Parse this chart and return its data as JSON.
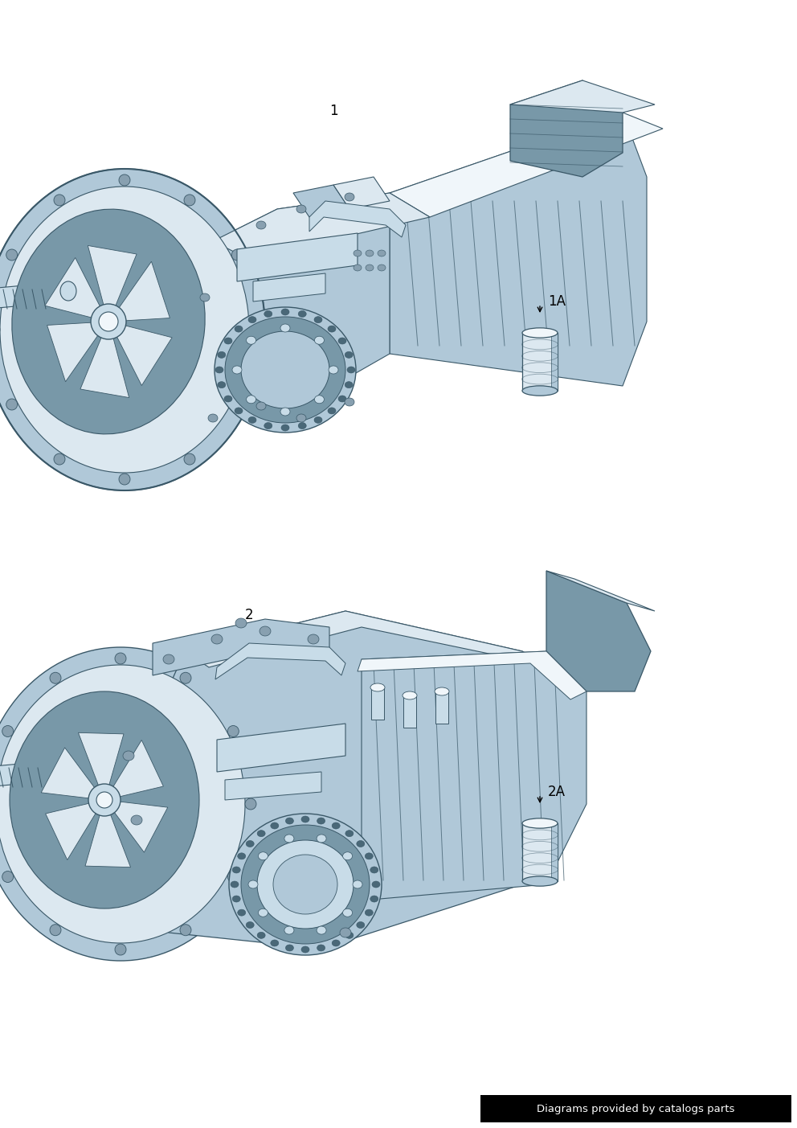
{
  "background_color": "#ffffff",
  "fig_width": 9.92,
  "fig_height": 14.03,
  "dpi": 100,
  "footer_text": "Diagrams provided by catalogs parts",
  "footer_bg": "#000000",
  "footer_color": "#ffffff",
  "footer_fontsize": 9.5,
  "label1": "1",
  "label1A": "1A",
  "label2": "2",
  "label2A": "2A",
  "label_fontsize": 12,
  "c_light": "#dce8f0",
  "c_mid": "#b0c8d8",
  "c_dark": "#7898a8",
  "c_darker": "#4a6878",
  "c_highlight": "#f0f6fa",
  "c_shadow": "#88a0b0",
  "c_line": "#3a5868",
  "c_chrome": "#c8dce8",
  "c_deep": "#2a4858"
}
